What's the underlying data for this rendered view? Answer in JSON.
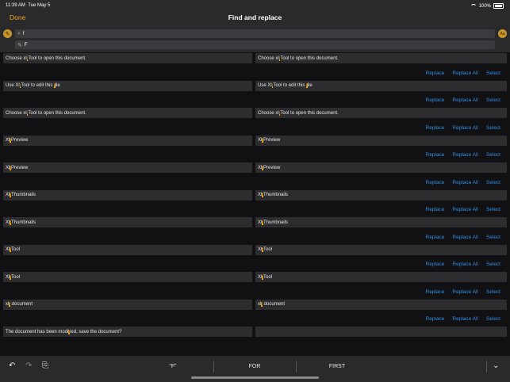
{
  "status": {
    "time": "11:39 AM",
    "date": "Tue May 5",
    "battery": "100%"
  },
  "nav": {
    "done": "Done",
    "title": "Find and replace"
  },
  "search": {
    "find_value": "f",
    "replace_value": "F",
    "case_button": "Aa"
  },
  "actions": {
    "replace": "Replace",
    "replace_all": "Replace All",
    "select": "Select"
  },
  "results": [
    {
      "left": [
        "Choose xl",
        "f",
        "Tool to open this document."
      ],
      "right": [
        "Choose xl",
        "f",
        "Tool to open this document."
      ]
    },
    {
      "left": [
        "Use Xl",
        "f",
        "Tool to edit this ",
        "f",
        "ile"
      ],
      "right": [
        "Use Xl",
        "f",
        "Tool to edit this ",
        "f",
        "ile"
      ]
    },
    {
      "left": [
        "Choose xl",
        "f",
        "Tool to open this document."
      ],
      "right": [
        "Choose xl",
        "f",
        "Tool to open this document."
      ]
    },
    {
      "left": [
        "Xl",
        "f",
        "Preview"
      ],
      "right": [
        "Xl",
        "f",
        "Preview"
      ]
    },
    {
      "left": [
        "Xl",
        "f",
        "Preview"
      ],
      "right": [
        "Xl",
        "f",
        "Preview"
      ]
    },
    {
      "left": [
        "Xl",
        "f",
        "Thumbnails"
      ],
      "right": [
        "Xl",
        "f",
        "Thumbnails"
      ]
    },
    {
      "left": [
        "Xl",
        "f",
        "Thumbnails"
      ],
      "right": [
        "Xl",
        "f",
        "Thumbnails"
      ]
    },
    {
      "left": [
        "Xl",
        "f",
        "Tool"
      ],
      "right": [
        "Xl",
        "f",
        "Tool"
      ]
    },
    {
      "left": [
        "Xl",
        "f",
        "Tool"
      ],
      "right": [
        "Xl",
        "f",
        "Tool"
      ]
    },
    {
      "left": [
        "xl",
        "f",
        " document"
      ],
      "right": [
        "xl",
        "f",
        " document"
      ]
    },
    {
      "left": [
        "The document has been modi",
        "f",
        "ied, save the document?"
      ],
      "right": []
    }
  ],
  "toolbar": {
    "sugg1": "“F”",
    "sugg2": "FOR",
    "sugg3": "FIRST"
  },
  "icons": {
    "undo": "undo-icon",
    "redo": "redo-icon",
    "paste": "clipboard-icon",
    "dismiss": "chevron-down-icon"
  }
}
